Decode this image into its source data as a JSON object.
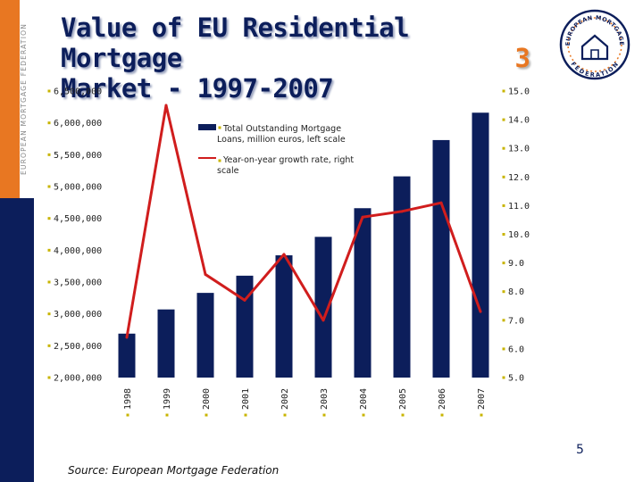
{
  "sidebar": {
    "text": "EUROPEAN MORTGAGE FEDERATION"
  },
  "title": {
    "line1": "Value of EU Residential Mortgage",
    "line2": "Market - 1997-2007",
    "badge": "3"
  },
  "logo": {
    "top_text": "EUROPEAN MORTGAGE",
    "bottom_text": "FEDERATION"
  },
  "source": "Source: European Mortgage Federation",
  "page_number": "5",
  "colors": {
    "navy": "#0c1e5b",
    "orange": "#e87722",
    "line": "#d01d1d"
  },
  "chart_data": {
    "type": "bar",
    "categories": [
      "1998",
      "1999",
      "2000",
      "2001",
      "2002",
      "2003",
      "2004",
      "2005",
      "2006",
      "2007"
    ],
    "series": [
      {
        "name": "Total Outstanding Mortgage Loans, million euros, left scale",
        "type": "bar",
        "axis": "left",
        "values": [
          2690000,
          3070000,
          3330000,
          3600000,
          3920000,
          4210000,
          4660000,
          5160000,
          5730000,
          6160000
        ]
      },
      {
        "name": "Year-on-year growth rate, right scale",
        "type": "line",
        "axis": "right",
        "values": [
          6.4,
          14.5,
          8.6,
          7.7,
          9.3,
          7.0,
          10.6,
          10.8,
          11.1,
          7.3
        ]
      }
    ],
    "left_axis": {
      "ylim": [
        2000000,
        6500000
      ],
      "ticks": [
        "2,000,000",
        "2,500,000",
        "3,000,000",
        "3,500,000",
        "4,000,000",
        "4,500,000",
        "5,000,000",
        "5,500,000",
        "6,000,000",
        "6,500,000"
      ]
    },
    "right_axis": {
      "ylim": [
        5.0,
        15.0
      ],
      "ticks": [
        "5.0",
        "6.0",
        "7.0",
        "8.0",
        "9.0",
        "10.0",
        "11.0",
        "12.0",
        "13.0",
        "14.0",
        "15.0"
      ]
    },
    "legend_position": "top-center",
    "grid": false
  }
}
